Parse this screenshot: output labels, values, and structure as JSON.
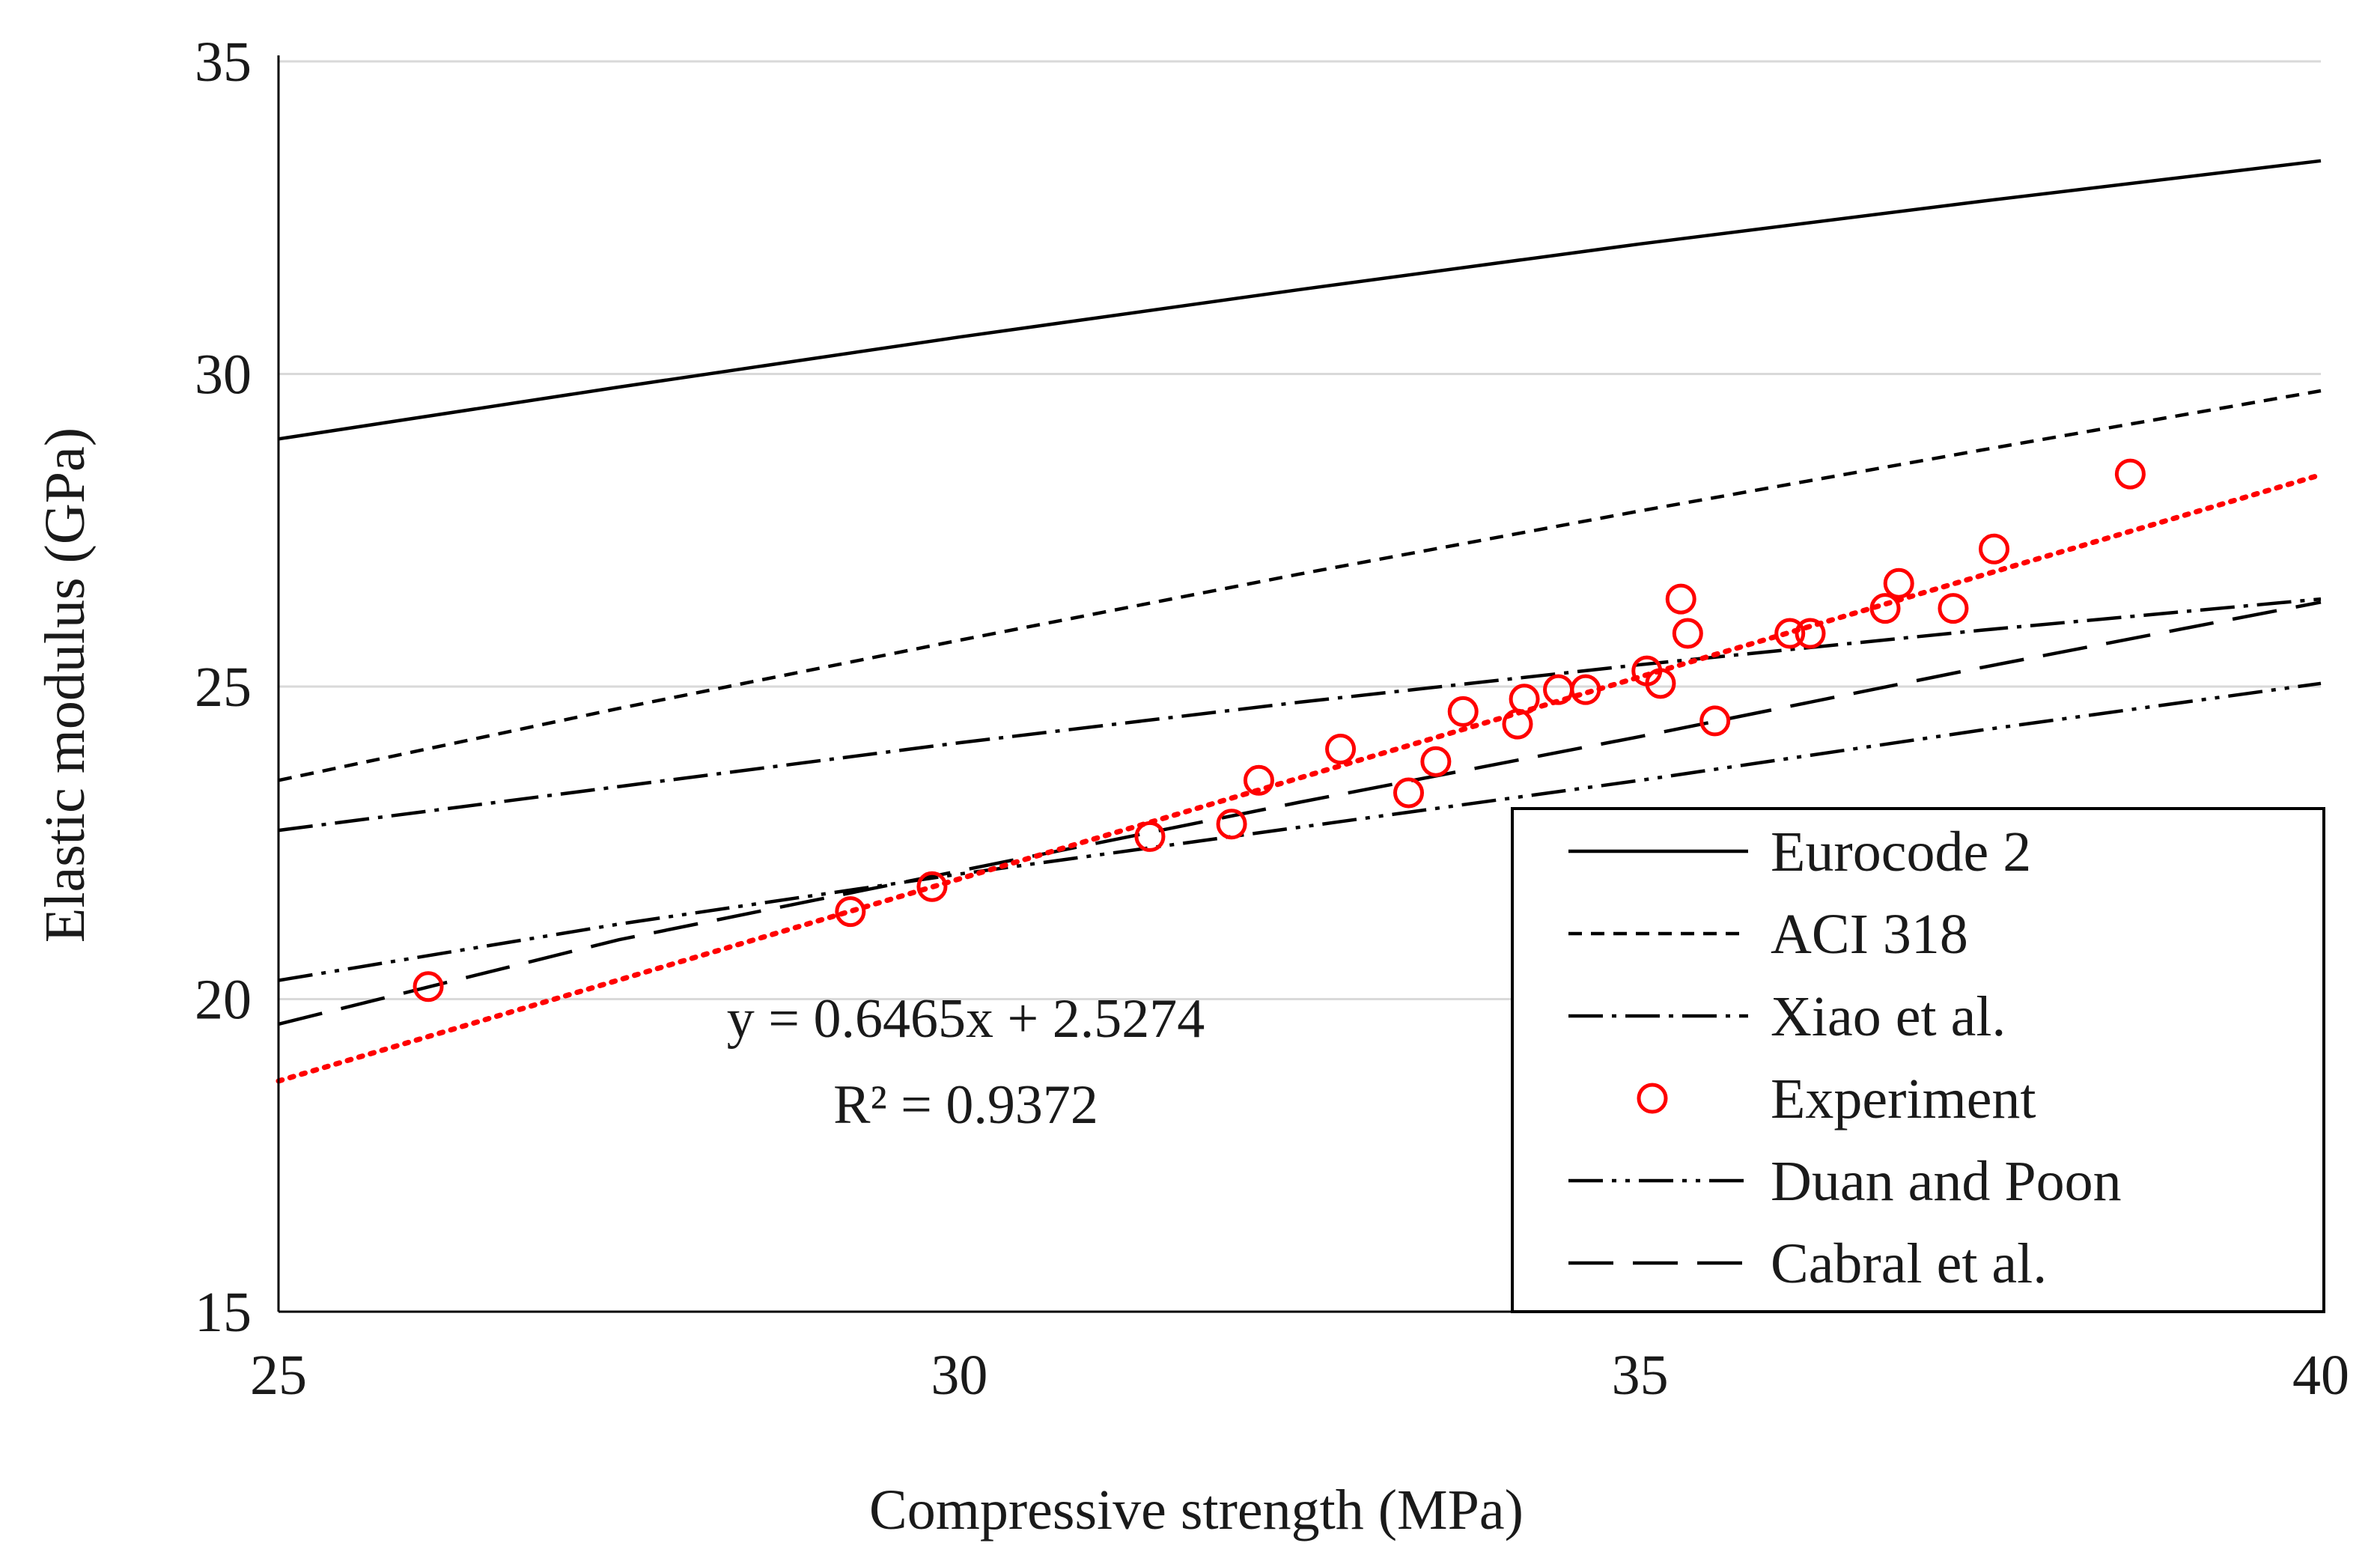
{
  "chart_data": {
    "type": "scatter",
    "xlabel": "Compressive strength (MPa)",
    "ylabel": "Elastic modulus (GPa)",
    "xlim": [
      25,
      40
    ],
    "ylim": [
      15,
      35
    ],
    "xticks": [
      25,
      30,
      35,
      40
    ],
    "yticks": [
      15,
      20,
      25,
      30,
      35
    ],
    "grid": "horizontal",
    "legend_position": "bottom-right",
    "series": [
      {
        "name": "Eurocode 2",
        "kind": "line",
        "dash": "solid",
        "color": "#000000",
        "points": [
          [
            25,
            28.96
          ],
          [
            27.5,
            29.79
          ],
          [
            30,
            30.59
          ],
          [
            32.5,
            31.35
          ],
          [
            35,
            32.08
          ],
          [
            37.5,
            32.76
          ],
          [
            40,
            33.41
          ]
        ]
      },
      {
        "name": "ACI 318",
        "kind": "line",
        "dash": "short-dash",
        "color": "#000000",
        "points": [
          [
            25,
            23.5
          ],
          [
            27.5,
            24.65
          ],
          [
            30,
            25.74
          ],
          [
            32.5,
            26.8
          ],
          [
            35,
            27.81
          ],
          [
            37.5,
            28.78
          ],
          [
            40,
            29.73
          ]
        ]
      },
      {
        "name": "Xiao et al.",
        "kind": "line",
        "dash": "dash-dot",
        "color": "#000000",
        "points": [
          [
            25,
            22.7
          ],
          [
            27.5,
            23.4
          ],
          [
            30,
            24.1
          ],
          [
            32.5,
            24.75
          ],
          [
            35,
            25.35
          ],
          [
            37.5,
            25.9
          ],
          [
            40,
            26.4
          ]
        ]
      },
      {
        "name": "Experiment",
        "kind": "scatter",
        "marker": "open-circle",
        "color": "#ff0000",
        "points": [
          [
            26.1,
            20.2
          ],
          [
            29.2,
            21.4
          ],
          [
            29.8,
            21.8
          ],
          [
            31.4,
            22.6
          ],
          [
            32.0,
            22.8
          ],
          [
            32.2,
            23.5
          ],
          [
            32.8,
            24.0
          ],
          [
            33.3,
            23.3
          ],
          [
            33.5,
            23.8
          ],
          [
            33.7,
            24.6
          ],
          [
            34.1,
            24.4
          ],
          [
            34.15,
            24.8
          ],
          [
            34.4,
            24.95
          ],
          [
            34.6,
            24.95
          ],
          [
            35.05,
            25.25
          ],
          [
            35.15,
            25.05
          ],
          [
            35.3,
            26.4
          ],
          [
            35.35,
            25.85
          ],
          [
            35.55,
            24.45
          ],
          [
            36.1,
            25.85
          ],
          [
            36.25,
            25.85
          ],
          [
            36.8,
            26.25
          ],
          [
            36.9,
            26.65
          ],
          [
            37.3,
            26.25
          ],
          [
            37.6,
            27.2
          ],
          [
            38.6,
            28.4
          ]
        ]
      },
      {
        "name": "Duan and Poon",
        "kind": "line",
        "dash": "dash-dot-dot",
        "color": "#000000",
        "points": [
          [
            25,
            20.3
          ],
          [
            27.5,
            21.2
          ],
          [
            30,
            22.0
          ],
          [
            32.5,
            22.75
          ],
          [
            35,
            23.5
          ],
          [
            37.5,
            24.3
          ],
          [
            40,
            25.05
          ]
        ]
      },
      {
        "name": "Cabral et al.",
        "kind": "line",
        "dash": "long-dash",
        "color": "#000000",
        "points": [
          [
            25,
            19.6
          ],
          [
            27.5,
            20.95
          ],
          [
            30,
            22.05
          ],
          [
            32.5,
            23.15
          ],
          [
            35,
            24.2
          ],
          [
            37.5,
            25.3
          ],
          [
            40,
            26.35
          ]
        ]
      }
    ],
    "trendline": {
      "series": "Experiment",
      "slope": 0.6465,
      "intercept": 2.5274,
      "x_range": [
        25,
        40
      ],
      "color": "#ff0000",
      "dash": "dotted"
    },
    "annotations": {
      "equation": "y = 0.6465x + 2.5274",
      "r_squared": "R² = 0.9372"
    }
  }
}
